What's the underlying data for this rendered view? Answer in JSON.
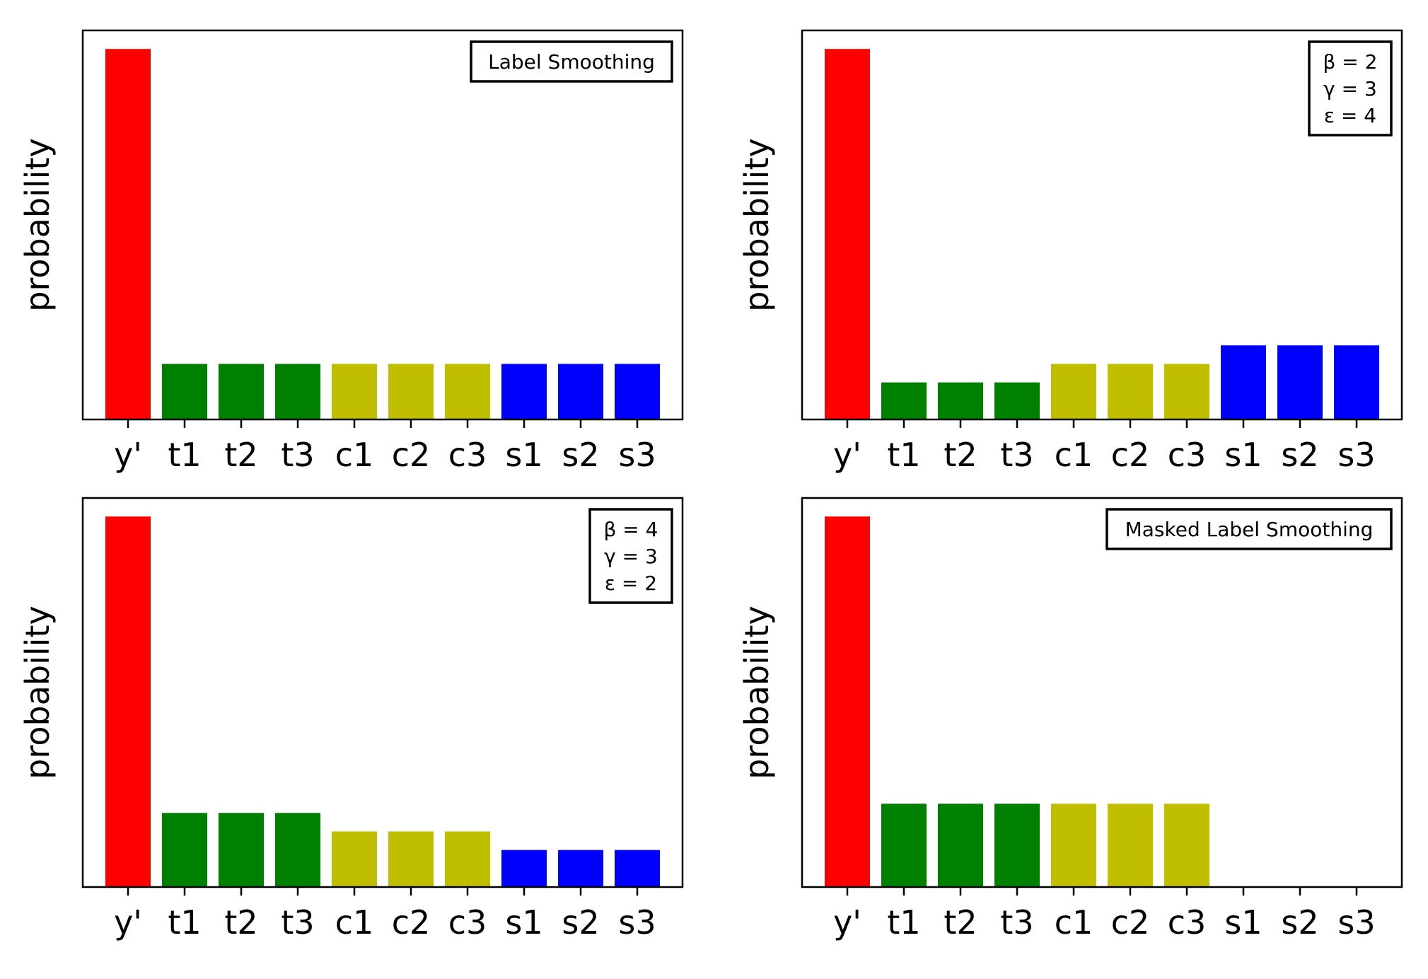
{
  "chart_data": [
    {
      "type": "bar",
      "ylabel": "probability",
      "categories": [
        "y'",
        "t1",
        "t2",
        "t3",
        "c1",
        "c2",
        "c3",
        "s1",
        "s2",
        "s3"
      ],
      "values": [
        1.0,
        0.15,
        0.15,
        0.15,
        0.15,
        0.15,
        0.15,
        0.15,
        0.15,
        0.15
      ],
      "colors": [
        "#ff0000",
        "#008000",
        "#008000",
        "#008000",
        "#bfbf00",
        "#bfbf00",
        "#bfbf00",
        "#0000ff",
        "#0000ff",
        "#0000ff"
      ],
      "ylim": [
        0,
        1.05
      ],
      "legend": {
        "lines": [
          "Label Smoothing"
        ],
        "placement": "top-right"
      }
    },
    {
      "type": "bar",
      "ylabel": "probability",
      "categories": [
        "y'",
        "t1",
        "t2",
        "t3",
        "c1",
        "c2",
        "c3",
        "s1",
        "s2",
        "s3"
      ],
      "values": [
        1.0,
        0.1,
        0.1,
        0.1,
        0.15,
        0.15,
        0.15,
        0.2,
        0.2,
        0.2
      ],
      "colors": [
        "#ff0000",
        "#008000",
        "#008000",
        "#008000",
        "#bfbf00",
        "#bfbf00",
        "#bfbf00",
        "#0000ff",
        "#0000ff",
        "#0000ff"
      ],
      "ylim": [
        0,
        1.05
      ],
      "legend": {
        "lines": [
          "β = 2",
          "γ = 3",
          "ε = 4"
        ],
        "placement": "top-right"
      }
    },
    {
      "type": "bar",
      "ylabel": "probability",
      "categories": [
        "y'",
        "t1",
        "t2",
        "t3",
        "c1",
        "c2",
        "c3",
        "s1",
        "s2",
        "s3"
      ],
      "values": [
        1.0,
        0.2,
        0.2,
        0.2,
        0.15,
        0.15,
        0.15,
        0.1,
        0.1,
        0.1
      ],
      "colors": [
        "#ff0000",
        "#008000",
        "#008000",
        "#008000",
        "#bfbf00",
        "#bfbf00",
        "#bfbf00",
        "#0000ff",
        "#0000ff",
        "#0000ff"
      ],
      "ylim": [
        0,
        1.05
      ],
      "legend": {
        "lines": [
          "β = 4",
          "γ = 3",
          "ε = 2"
        ],
        "placement": "top-right"
      }
    },
    {
      "type": "bar",
      "ylabel": "probability",
      "categories": [
        "y'",
        "t1",
        "t2",
        "t3",
        "c1",
        "c2",
        "c3",
        "s1",
        "s2",
        "s3"
      ],
      "values": [
        1.0,
        0.225,
        0.225,
        0.225,
        0.225,
        0.225,
        0.225,
        0,
        0,
        0
      ],
      "colors": [
        "#ff0000",
        "#008000",
        "#008000",
        "#008000",
        "#bfbf00",
        "#bfbf00",
        "#bfbf00",
        "#0000ff",
        "#0000ff",
        "#0000ff"
      ],
      "ylim": [
        0,
        1.05
      ],
      "legend": {
        "lines": [
          "Masked Label Smoothing"
        ],
        "placement": "top-right"
      }
    }
  ]
}
